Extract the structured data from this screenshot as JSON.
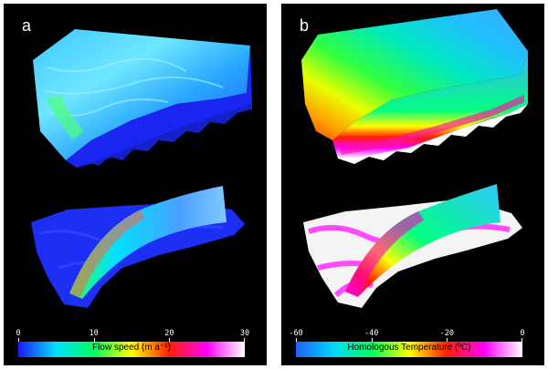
{
  "panels": [
    {
      "label": "a",
      "colorbar": {
        "title": "Flow speed (m a⁻¹)",
        "ticks": [
          "0",
          "10",
          "20",
          "30"
        ],
        "colors": [
          "#1a1aff",
          "#00e0ff",
          "#00ff60",
          "#ffff00",
          "#ff2000",
          "#ff00ff",
          "#ffffff"
        ]
      }
    },
    {
      "label": "b",
      "colorbar": {
        "title": "Homologous Temperature (ºC)",
        "ticks": [
          "-60",
          "-40",
          "-20",
          "0"
        ],
        "colors": [
          "#2060ff",
          "#00d8ff",
          "#00ff60",
          "#ffff00",
          "#ff2000",
          "#ff00ff",
          "#ffffff"
        ]
      }
    }
  ]
}
